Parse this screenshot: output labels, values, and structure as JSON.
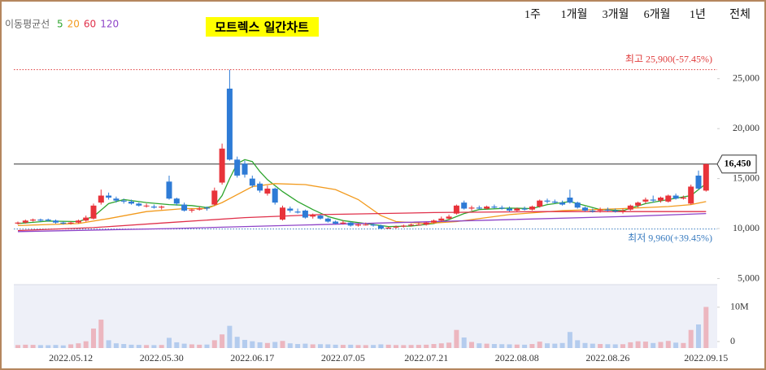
{
  "chart_data": {
    "type": "candlestick",
    "title": "모트렉스 일간차트",
    "legend_title": "이동평균선",
    "up_color": "#e8333a",
    "down_color": "#2e7bd6",
    "categories": [
      null,
      null,
      null,
      null,
      null,
      null,
      null,
      "2022.05.12",
      null,
      null,
      null,
      null,
      null,
      null,
      null,
      null,
      null,
      null,
      null,
      "2022.05.30",
      null,
      null,
      null,
      null,
      null,
      null,
      null,
      null,
      null,
      null,
      null,
      "2022.06.17",
      null,
      null,
      null,
      null,
      null,
      null,
      null,
      null,
      null,
      null,
      null,
      "2022.07.05",
      null,
      null,
      null,
      null,
      null,
      null,
      null,
      null,
      null,
      null,
      "2022.07.21",
      null,
      null,
      null,
      null,
      null,
      null,
      null,
      null,
      null,
      null,
      null,
      "2022.08.08",
      null,
      null,
      null,
      null,
      null,
      null,
      null,
      null,
      null,
      null,
      null,
      "2022.08.26",
      null,
      null,
      null,
      null,
      null,
      null,
      null,
      null,
      null,
      null,
      null,
      null,
      "2022.09.15"
    ],
    "ohlc": [
      [
        10500,
        10700,
        10400,
        10600
      ],
      [
        10600,
        10900,
        10500,
        10800
      ],
      [
        10800,
        11000,
        10700,
        10900
      ],
      [
        10900,
        11000,
        10700,
        10800
      ],
      [
        10900,
        11000,
        10700,
        10800
      ],
      [
        10800,
        10900,
        10500,
        10600
      ],
      [
        10600,
        10700,
        10400,
        10500
      ],
      [
        10500,
        10700,
        10400,
        10600
      ],
      [
        10600,
        10900,
        10500,
        10800
      ],
      [
        10800,
        11300,
        10700,
        11100
      ],
      [
        11000,
        12500,
        10900,
        12300
      ],
      [
        12600,
        13900,
        12400,
        13300
      ],
      [
        13300,
        13600,
        12900,
        13100
      ],
      [
        13000,
        13200,
        12600,
        12800
      ],
      [
        12800,
        13000,
        12500,
        12700
      ],
      [
        12700,
        12900,
        12400,
        12500
      ],
      [
        12500,
        12600,
        12200,
        12300
      ],
      [
        12300,
        12500,
        12100,
        12300
      ],
      [
        12200,
        12400,
        12000,
        12100
      ],
      [
        12100,
        12300,
        11900,
        12200
      ],
      [
        14700,
        15300,
        12900,
        13000
      ],
      [
        13000,
        13100,
        12300,
        12500
      ],
      [
        12400,
        12600,
        11700,
        11800
      ],
      [
        11800,
        12000,
        11600,
        11900
      ],
      [
        11900,
        12200,
        11800,
        12000
      ],
      [
        12100,
        12200,
        11800,
        12000
      ],
      [
        12400,
        14100,
        12300,
        13800
      ],
      [
        14600,
        18500,
        14400,
        18000
      ],
      [
        24000,
        25900,
        16800,
        16900
      ],
      [
        16900,
        17200,
        15100,
        15300
      ],
      [
        16500,
        16800,
        15100,
        15400
      ],
      [
        15000,
        15300,
        14100,
        14300
      ],
      [
        14500,
        14700,
        13600,
        13800
      ],
      [
        13500,
        14300,
        13300,
        14000
      ],
      [
        14000,
        14100,
        12400,
        12600
      ],
      [
        10900,
        12300,
        10800,
        12100
      ],
      [
        12000,
        12200,
        11600,
        11800
      ],
      [
        11700,
        12000,
        11500,
        11600
      ],
      [
        11800,
        11900,
        11000,
        11100
      ],
      [
        11200,
        11500,
        11000,
        11400
      ],
      [
        11300,
        11400,
        10900,
        11000
      ],
      [
        11000,
        11100,
        10600,
        10700
      ],
      [
        10700,
        10800,
        10400,
        10500
      ],
      [
        10500,
        10800,
        10400,
        10600
      ],
      [
        10600,
        10700,
        10200,
        10300
      ],
      [
        10300,
        10500,
        10200,
        10400
      ],
      [
        10400,
        10600,
        10300,
        10400
      ],
      [
        10400,
        10500,
        10200,
        10300
      ],
      [
        10300,
        10400,
        9960,
        10000
      ],
      [
        10000,
        10200,
        9970,
        10100
      ],
      [
        10100,
        10300,
        10000,
        10200
      ],
      [
        10200,
        10400,
        10100,
        10300
      ],
      [
        10300,
        10500,
        10200,
        10400
      ],
      [
        10400,
        10600,
        10300,
        10400
      ],
      [
        10400,
        10700,
        10300,
        10600
      ],
      [
        10600,
        10900,
        10500,
        10800
      ],
      [
        10800,
        11200,
        10700,
        11000
      ],
      [
        11000,
        11400,
        10900,
        11200
      ],
      [
        11500,
        12400,
        11400,
        12300
      ],
      [
        12600,
        12800,
        11900,
        12000
      ],
      [
        12000,
        12300,
        11800,
        12100
      ],
      [
        12100,
        12300,
        11900,
        12000
      ],
      [
        12000,
        12300,
        11900,
        12200
      ],
      [
        12200,
        12400,
        12000,
        12100
      ],
      [
        12100,
        12300,
        11900,
        12000
      ],
      [
        12000,
        12200,
        11700,
        11800
      ],
      [
        11800,
        12100,
        11700,
        12000
      ],
      [
        12000,
        12200,
        11800,
        11900
      ],
      [
        11900,
        12300,
        11800,
        12200
      ],
      [
        12200,
        12900,
        12100,
        12800
      ],
      [
        12800,
        13000,
        12500,
        12700
      ],
      [
        12700,
        12900,
        12500,
        12600
      ],
      [
        12600,
        12800,
        12300,
        12400
      ],
      [
        13100,
        13900,
        12500,
        12600
      ],
      [
        12600,
        12700,
        12000,
        12100
      ],
      [
        12100,
        12200,
        11700,
        11800
      ],
      [
        11800,
        12000,
        11600,
        11700
      ],
      [
        11800,
        12100,
        11600,
        11900
      ],
      [
        11900,
        12100,
        11700,
        11800
      ],
      [
        11800,
        12000,
        11600,
        11700
      ],
      [
        11700,
        12000,
        11500,
        11800
      ],
      [
        11900,
        12400,
        11800,
        12300
      ],
      [
        12300,
        12700,
        12100,
        12600
      ],
      [
        12700,
        13100,
        12500,
        12900
      ],
      [
        12900,
        13300,
        12600,
        12800
      ],
      [
        12800,
        13200,
        12600,
        13100
      ],
      [
        12700,
        13400,
        12600,
        13300
      ],
      [
        13300,
        13500,
        12900,
        13000
      ],
      [
        13000,
        13300,
        12900,
        13100
      ],
      [
        12500,
        14400,
        12400,
        14200
      ],
      [
        15300,
        15800,
        13900,
        14000
      ],
      [
        13800,
        16500,
        13700,
        16450
      ]
    ],
    "volume": [
      400000,
      500000,
      450000,
      380000,
      350000,
      420000,
      300000,
      600000,
      900000,
      1500000,
      5200000,
      7800000,
      1800000,
      900000,
      700000,
      500000,
      450000,
      400000,
      380000,
      420000,
      2500000,
      1200000,
      800000,
      600000,
      500000,
      550000,
      1800000,
      3500000,
      6000000,
      2800000,
      1900000,
      1500000,
      1200000,
      1000000,
      1300000,
      1600000,
      900000,
      700000,
      800000,
      600000,
      650000,
      600000,
      500000,
      450000,
      500000,
      400000,
      380000,
      420000,
      600000,
      500000,
      400000,
      380000,
      420000,
      450000,
      500000,
      700000,
      900000,
      1100000,
      4800000,
      2600000,
      1300000,
      900000,
      800000,
      700000,
      650000,
      600000,
      550000,
      500000,
      700000,
      1400000,
      900000,
      800000,
      1000000,
      4200000,
      1800000,
      1000000,
      800000,
      700000,
      650000,
      600000,
      650000,
      1200000,
      1500000,
      1400000,
      1000000,
      1300000,
      1600000,
      1100000,
      1000000,
      4800000,
      6400000,
      11500000
    ],
    "series": [
      {
        "name": "5",
        "color": "#2ea52e",
        "x": [
          0,
          4,
          8,
          10,
          12,
          14,
          17,
          20,
          23,
          25,
          26,
          27,
          28,
          29,
          30,
          31,
          32,
          33,
          35,
          37,
          39,
          41,
          43,
          46,
          49,
          52,
          55,
          57,
          59,
          61,
          65,
          68,
          70,
          73,
          75,
          77,
          80,
          83,
          86,
          89,
          91
        ],
        "values": [
          10500,
          10750,
          10700,
          11200,
          12500,
          12900,
          12600,
          12400,
          12300,
          12100,
          12300,
          13300,
          15000,
          16500,
          16900,
          16700,
          15700,
          14900,
          13700,
          12700,
          11900,
          11200,
          10800,
          10500,
          10200,
          10250,
          10500,
          10900,
          11500,
          11900,
          12050,
          12000,
          12400,
          12700,
          12300,
          11900,
          11800,
          12500,
          12900,
          13300,
          14500
        ]
      },
      {
        "name": "20",
        "color": "#f29a1d",
        "x": [
          0,
          8,
          12,
          17,
          22,
          25,
          27,
          29,
          31,
          34,
          38,
          42,
          45,
          48,
          50,
          54,
          58,
          65,
          72,
          80,
          86,
          89,
          91
        ],
        "values": [
          10300,
          10500,
          11000,
          11700,
          12000,
          12000,
          12600,
          13400,
          14200,
          14500,
          14400,
          13900,
          12900,
          11300,
          10700,
          10500,
          10700,
          11400,
          11800,
          12000,
          12200,
          12400,
          12700
        ]
      },
      {
        "name": "60",
        "color": "#e0304a",
        "x": [
          0,
          10,
          20,
          30,
          40,
          55,
          70,
          91
        ],
        "values": [
          9800,
          10100,
          10600,
          11100,
          11400,
          11600,
          11700,
          11700
        ]
      },
      {
        "name": "120",
        "color": "#8e44c8",
        "x": [
          0,
          20,
          40,
          60,
          80,
          91
        ],
        "values": [
          9700,
          10000,
          10400,
          10800,
          11200,
          11500
        ]
      }
    ],
    "ylim": [
      4800,
      28800
    ],
    "yticks": [
      {
        "value": 5000,
        "label": "5,000"
      },
      {
        "value": 10000,
        "label": "10,000"
      },
      {
        "value": 15000,
        "label": "15,000"
      },
      {
        "value": 20000,
        "label": "20,000"
      },
      {
        "value": 25000,
        "label": "25,000"
      }
    ],
    "vlim": [
      0,
      18000000
    ],
    "vticks": [
      {
        "value": 10000000,
        "label": "10M"
      },
      0
    ],
    "high": {
      "value": 25900,
      "label": "최고 25,900(-57.45%)",
      "color": "#e03c3c"
    },
    "low": {
      "value": 9960,
      "label": "최저 9,960(+39.45%)",
      "color": "#3a7cc0"
    },
    "last": {
      "value": 16450,
      "label": "16,450"
    },
    "grid": false
  },
  "controls": {
    "periods": [
      "1주",
      "1개월",
      "3개월",
      "6개월",
      "1년",
      "전체"
    ]
  }
}
